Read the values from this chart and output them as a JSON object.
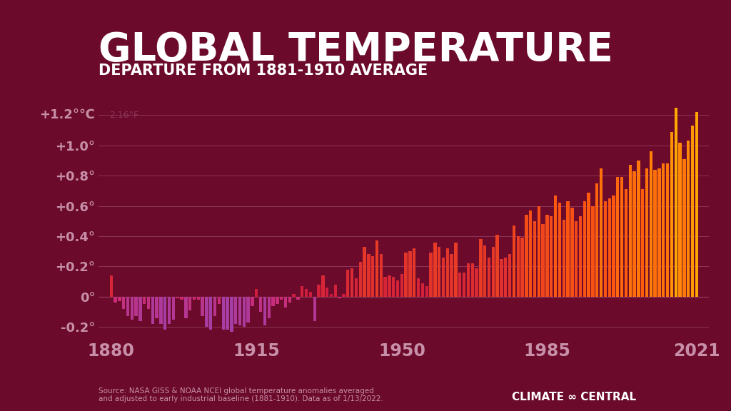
{
  "title": "GLOBAL TEMPERATURE",
  "subtitle": "DEPARTURE FROM 1881-1910 AVERAGE",
  "source_text": "Source: NASA GISS & NOAA NCEI global temperature anomalies averaged\nand adjusted to early industrial baseline (1881-1910). Data as of 1/13/2022.",
  "logo_text": "CLIMATE ∞ CENTRAL",
  "background_color": "#6B0A2A",
  "xlabel": "",
  "ylabel": "",
  "ytick_values": [
    -0.2,
    0.0,
    0.2,
    0.4,
    0.6,
    0.8,
    1.0,
    1.2
  ],
  "xtick_labels": [
    "1880",
    "1915",
    "1950",
    "1985",
    "2021"
  ],
  "xtick_values": [
    1880,
    1915,
    1950,
    1985,
    2021
  ],
  "ylim": [
    -0.28,
    1.35
  ],
  "xlim": [
    1877,
    2024
  ],
  "years": [
    1880,
    1881,
    1882,
    1883,
    1884,
    1885,
    1886,
    1887,
    1888,
    1889,
    1890,
    1891,
    1892,
    1893,
    1894,
    1895,
    1896,
    1897,
    1898,
    1899,
    1900,
    1901,
    1902,
    1903,
    1904,
    1905,
    1906,
    1907,
    1908,
    1909,
    1910,
    1911,
    1912,
    1913,
    1914,
    1915,
    1916,
    1917,
    1918,
    1919,
    1920,
    1921,
    1922,
    1923,
    1924,
    1925,
    1926,
    1927,
    1928,
    1929,
    1930,
    1931,
    1932,
    1933,
    1934,
    1935,
    1936,
    1937,
    1938,
    1939,
    1940,
    1941,
    1942,
    1943,
    1944,
    1945,
    1946,
    1947,
    1948,
    1949,
    1950,
    1951,
    1952,
    1953,
    1954,
    1955,
    1956,
    1957,
    1958,
    1959,
    1960,
    1961,
    1962,
    1963,
    1964,
    1965,
    1966,
    1967,
    1968,
    1969,
    1970,
    1971,
    1972,
    1973,
    1974,
    1975,
    1976,
    1977,
    1978,
    1979,
    1980,
    1981,
    1982,
    1983,
    1984,
    1985,
    1986,
    1987,
    1988,
    1989,
    1990,
    1991,
    1992,
    1993,
    1994,
    1995,
    1996,
    1997,
    1998,
    1999,
    2000,
    2001,
    2002,
    2003,
    2004,
    2005,
    2006,
    2007,
    2008,
    2009,
    2010,
    2011,
    2012,
    2013,
    2014,
    2015,
    2016,
    2017,
    2018,
    2019,
    2020,
    2021
  ],
  "anomalies": [
    0.14,
    -0.04,
    -0.03,
    -0.08,
    -0.13,
    -0.15,
    -0.13,
    -0.16,
    -0.05,
    -0.08,
    -0.18,
    -0.14,
    -0.18,
    -0.22,
    -0.18,
    -0.15,
    -0.01,
    -0.02,
    -0.14,
    -0.09,
    -0.02,
    -0.02,
    -0.13,
    -0.2,
    -0.22,
    -0.13,
    -0.05,
    -0.22,
    -0.22,
    -0.23,
    -0.18,
    -0.19,
    -0.2,
    -0.17,
    -0.06,
    0.05,
    -0.1,
    -0.19,
    -0.14,
    -0.06,
    -0.05,
    -0.02,
    -0.07,
    -0.04,
    0.02,
    -0.02,
    0.07,
    0.05,
    0.03,
    -0.16,
    0.08,
    0.14,
    0.06,
    0.02,
    0.08,
    -0.01,
    0.02,
    0.18,
    0.19,
    0.12,
    0.23,
    0.33,
    0.28,
    0.27,
    0.37,
    0.28,
    0.13,
    0.14,
    0.13,
    0.11,
    0.15,
    0.29,
    0.3,
    0.32,
    0.12,
    0.09,
    0.07,
    0.29,
    0.36,
    0.33,
    0.26,
    0.32,
    0.28,
    0.36,
    0.16,
    0.16,
    0.22,
    0.22,
    0.19,
    0.38,
    0.34,
    0.26,
    0.33,
    0.41,
    0.25,
    0.26,
    0.28,
    0.47,
    0.4,
    0.39,
    0.54,
    0.57,
    0.5,
    0.6,
    0.48,
    0.54,
    0.53,
    0.67,
    0.62,
    0.51,
    0.63,
    0.59,
    0.5,
    0.53,
    0.63,
    0.69,
    0.6,
    0.75,
    0.85,
    0.63,
    0.65,
    0.67,
    0.79,
    0.79,
    0.71,
    0.87,
    0.83,
    0.9,
    0.71,
    0.85,
    0.96,
    0.84,
    0.85,
    0.88,
    0.88,
    1.09,
    1.25,
    1.02,
    0.91,
    1.03,
    1.13,
    1.22
  ],
  "title_fontsize": 40,
  "subtitle_fontsize": 15,
  "tick_fontsize": 13,
  "axis_tick_color": "#C890A8",
  "gridline_color": "#8B3558",
  "zero_line_color": "#C890A8"
}
